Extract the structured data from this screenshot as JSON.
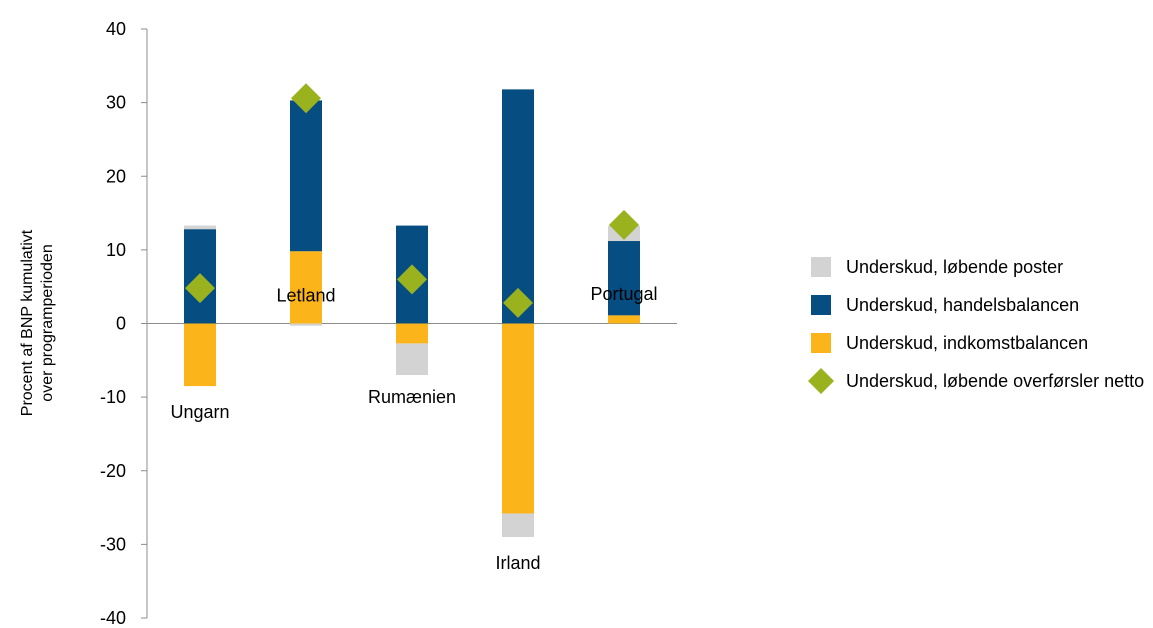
{
  "chart_data": {
    "type": "bar",
    "stacked": true,
    "categories": [
      "Ungarn",
      "Letland",
      "Rumænien",
      "Irland",
      "Portugal"
    ],
    "ylabel_lines": [
      "Procent af BNP kumulativt",
      "over programperioden"
    ],
    "ylim": [
      -40,
      40
    ],
    "yticks": [
      -40,
      -30,
      -20,
      -10,
      0,
      10,
      20,
      30,
      40
    ],
    "grid": false,
    "legend_position": "right",
    "series": [
      {
        "name": "Underskud, løbende poster",
        "color": "#d3d3d3",
        "segments": [
          [
            [
              12.8,
              13.3
            ],
            [
              -8.5,
              -8.5
            ]
          ],
          [
            [
              30.3,
              30.3
            ],
            [
              0,
              -0.3
            ]
          ],
          [
            [
              13.3,
              13.3
            ],
            [
              -2.7,
              -7.0
            ]
          ],
          [
            [
              31.8,
              31.8
            ],
            [
              -25.8,
              -29.0
            ]
          ],
          [
            [
              11.2,
              13.3
            ],
            [
              1.1,
              1.1
            ]
          ]
        ]
      },
      {
        "name": "Underskud, handelsbalancen",
        "color": "#064e81",
        "segments": [
          [
            [
              0,
              12.8
            ]
          ],
          [
            [
              9.8,
              30.3
            ]
          ],
          [
            [
              0,
              13.3
            ]
          ],
          [
            [
              0,
              31.8
            ]
          ],
          [
            [
              1.1,
              11.2
            ]
          ]
        ]
      },
      {
        "name": "Underskud, indkomstbalancen",
        "color": "#fbb51a",
        "segments": [
          [
            [
              0,
              -8.5
            ]
          ],
          [
            [
              0,
              9.8
            ]
          ],
          [
            [
              0,
              -2.7
            ]
          ],
          [
            [
              0,
              -25.8
            ]
          ],
          [
            [
              0,
              1.1
            ]
          ]
        ]
      },
      {
        "name": "Underskud, løbende overførsler netto",
        "color": "#9bb21f",
        "marker": "diamond",
        "values": [
          4.8,
          30.6,
          6.0,
          2.8,
          13.4
        ]
      }
    ],
    "category_label_positions": [
      {
        "category": "Ungarn",
        "value": -12.0
      },
      {
        "category": "Letland",
        "value": 3.8
      },
      {
        "category": "Rumænien",
        "value": -10.0
      },
      {
        "category": "Irland",
        "value": -32.5
      },
      {
        "category": "Portugal",
        "value": 4.0
      }
    ]
  }
}
